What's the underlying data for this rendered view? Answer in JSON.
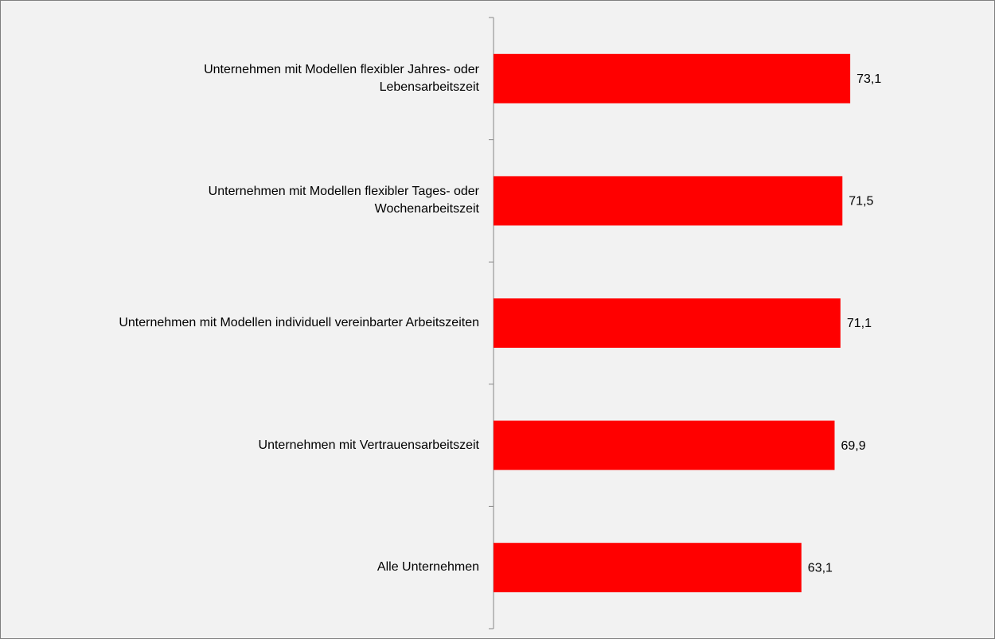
{
  "chart_data": {
    "type": "bar",
    "orientation": "horizontal",
    "categories": [
      "Unternehmen mit Modellen flexibler Jahres- oder\nLebensarbeitszeit",
      "Unternehmen mit Modellen flexibler Tages- oder\nWochenarbeitszeit",
      "Unternehmen mit Modellen individuell vereinbarter Arbeitszeiten",
      "Unternehmen mit Vertrauensarbeitszeit",
      "Alle Unternehmen"
    ],
    "values": [
      73.1,
      71.5,
      71.1,
      69.9,
      63.1
    ],
    "value_labels": [
      "73,1",
      "71,5",
      "71,1",
      "69,9",
      "63,1"
    ],
    "color": "#ff0000",
    "xlim": [
      0,
      100
    ]
  }
}
